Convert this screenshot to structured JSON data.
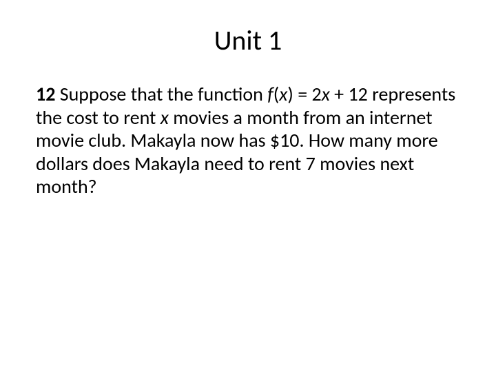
{
  "title": "Unit 1",
  "question": {
    "number": "12",
    "pre": " Suppose that the function ",
    "f": "f",
    "open": "(",
    "x1": "x",
    "close_eq": ") = 2",
    "x2": "x",
    "post_eq": " + 12 represents the cost to rent ",
    "x3": "x",
    "tail": " movies a month from an internet movie club. Makayla now has $10. How many more dollars does Makayla need to rent 7 movies next month?"
  },
  "style": {
    "background_color": "#ffffff",
    "text_color": "#000000",
    "title_fontsize": 40,
    "body_fontsize": 28,
    "font_family": "Calibri"
  }
}
